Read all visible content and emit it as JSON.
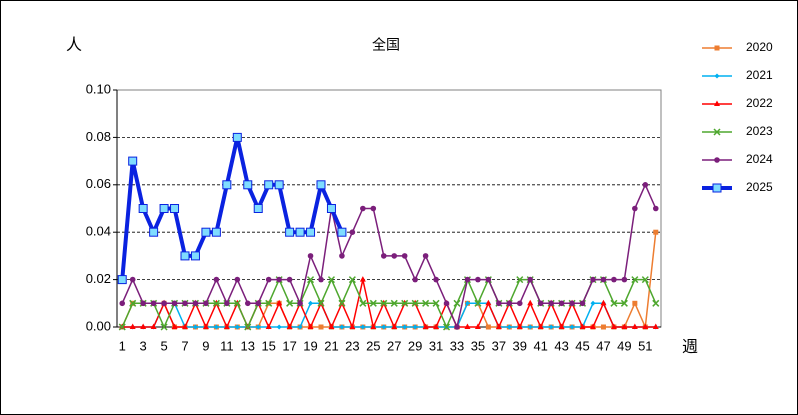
{
  "chart_data": {
    "type": "line",
    "title": "全国",
    "y_label": "人",
    "x_label": "週",
    "categories": [
      1,
      null,
      3,
      null,
      5,
      null,
      7,
      null,
      9,
      null,
      11,
      null,
      13,
      null,
      15,
      null,
      17,
      null,
      19,
      null,
      21,
      null,
      23,
      null,
      25,
      null,
      27,
      null,
      29,
      null,
      31,
      null,
      33,
      null,
      35,
      null,
      37,
      null,
      39,
      null,
      41,
      null,
      43,
      null,
      45,
      null,
      47,
      null,
      49,
      null,
      51,
      null
    ],
    "ylim": [
      0,
      0.1
    ],
    "yticks": [
      {
        "value": 0,
        "label": "0.00"
      },
      {
        "value": 0.02,
        "label": "0.02"
      },
      {
        "value": 0.04,
        "label": "0.04"
      },
      {
        "value": 0.06,
        "label": "0.06"
      },
      {
        "value": 0.08,
        "label": "0.08"
      },
      {
        "value": 0.1,
        "label": "0.10"
      }
    ],
    "grid": true,
    "legend": "right",
    "series": [
      {
        "name": "2020",
        "color": "#ed7d31",
        "marker": "square",
        "line_width": 1.5,
        "values": [
          0,
          0.01,
          0.01,
          0.01,
          0.01,
          0,
          0,
          0,
          0,
          0,
          0,
          0,
          0,
          0,
          0.01,
          0.01,
          0,
          0,
          0,
          0,
          0,
          0,
          0,
          0,
          0,
          0,
          0,
          0,
          0,
          0,
          0,
          0,
          0,
          0.01,
          0.01,
          0,
          0,
          0,
          0,
          0,
          0,
          0,
          0,
          0,
          0,
          0,
          0,
          0,
          0,
          0.01,
          0,
          0.04
        ]
      },
      {
        "name": "2021",
        "color": "#00b0f0",
        "marker": "diamond",
        "line_width": 1.5,
        "values": [
          0,
          0,
          0,
          0,
          0.01,
          0.01,
          0,
          0,
          0,
          0,
          0,
          0,
          0,
          0,
          0,
          0,
          0,
          0,
          0.01,
          0.01,
          0,
          0,
          0,
          0,
          0,
          0,
          0,
          0,
          0,
          0,
          0,
          0,
          0,
          0.01,
          0.01,
          0.01,
          0,
          0,
          0,
          0,
          0,
          0,
          0,
          0,
          0,
          0.01,
          0.01,
          0,
          0,
          0,
          0,
          0
        ]
      },
      {
        "name": "2022",
        "color": "#ff0000",
        "marker": "triangle",
        "line_width": 1.5,
        "values": [
          0,
          0,
          0,
          0,
          0.01,
          0,
          0,
          0.01,
          0,
          0.01,
          0,
          0.01,
          0,
          0.01,
          0,
          0.01,
          0,
          0.01,
          0,
          0.01,
          0,
          0.01,
          0,
          0.02,
          0,
          0.01,
          0,
          0.01,
          0.01,
          0,
          0,
          0.01,
          0,
          0,
          0,
          0.01,
          0,
          0.01,
          0,
          0.01,
          0,
          0.01,
          0,
          0.01,
          0,
          0,
          0.01,
          0,
          0,
          0,
          0,
          0
        ]
      },
      {
        "name": "2023",
        "color": "#4ea72e",
        "marker": "x",
        "line_width": 1.5,
        "values": [
          0,
          0.01,
          0.01,
          0.01,
          0,
          0.01,
          0.01,
          0.01,
          0.01,
          0.01,
          0.01,
          0.01,
          0,
          0.01,
          0.01,
          0.02,
          0.01,
          0.01,
          0.02,
          0.01,
          0.02,
          0.01,
          0.02,
          0.01,
          0.01,
          0.01,
          0.01,
          0.01,
          0.01,
          0.01,
          0.01,
          0,
          0.01,
          0.02,
          0.01,
          0.02,
          0.01,
          0.01,
          0.02,
          0.02,
          0.01,
          0.01,
          0.01,
          0.01,
          0.01,
          0.02,
          0.02,
          0.01,
          0.01,
          0.02,
          0.02,
          0.01
        ]
      },
      {
        "name": "2024",
        "color": "#7b1f7b",
        "marker": "circle",
        "line_width": 1.5,
        "values": [
          0.01,
          0.02,
          0.01,
          0.01,
          0.01,
          0.01,
          0.01,
          0.01,
          0.01,
          0.02,
          0.01,
          0.02,
          0.01,
          0.01,
          0.02,
          0.02,
          0.02,
          0.01,
          0.03,
          0.02,
          0.05,
          0.03,
          0.04,
          0.05,
          0.05,
          0.03,
          0.03,
          0.03,
          0.02,
          0.03,
          0.02,
          0.01,
          0,
          0.02,
          0.02,
          0.02,
          0.01,
          0.01,
          0.01,
          0.02,
          0.01,
          0.01,
          0.01,
          0.01,
          0.01,
          0.02,
          0.02,
          0.02,
          0.02,
          0.05,
          0.06,
          0.05
        ]
      },
      {
        "name": "2025",
        "color": "#0a22e0",
        "marker": "bigsquare",
        "line_width": 4,
        "values": [
          0.02,
          0.07,
          0.05,
          0.04,
          0.05,
          0.05,
          0.03,
          0.03,
          0.04,
          0.04,
          0.06,
          0.08,
          0.06,
          0.05,
          0.06,
          0.06,
          0.04,
          0.04,
          0.04,
          0.06,
          0.05,
          0.04,
          null,
          null,
          null,
          null,
          null,
          null,
          null,
          null,
          null,
          null,
          null,
          null,
          null,
          null,
          null,
          null,
          null,
          null,
          null,
          null,
          null,
          null,
          null,
          null,
          null,
          null,
          null,
          null,
          null,
          null
        ]
      }
    ]
  }
}
